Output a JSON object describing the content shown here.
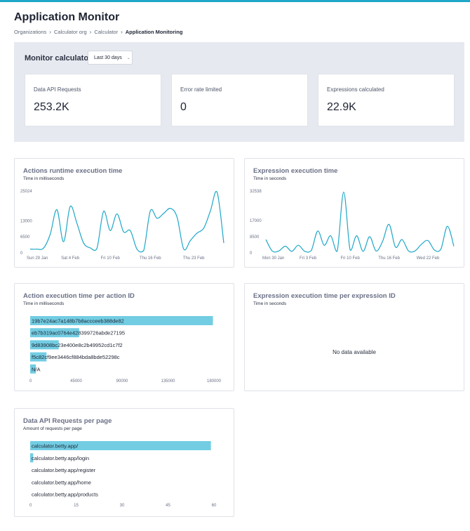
{
  "app": {
    "title": "Application Monitor",
    "breadcrumb": [
      "Organizations",
      "Calculator org",
      "Calculator",
      "Application Monitoring"
    ]
  },
  "monitor": {
    "title": "Monitor calculator",
    "range_label": "Last 30 days",
    "stats": [
      {
        "label": "Data API Requests",
        "value": "253.2K"
      },
      {
        "label": "Error rate limited",
        "value": "0"
      },
      {
        "label": "Expressions calculated",
        "value": "22.9K"
      }
    ]
  },
  "colors": {
    "accent": "#1ea7c9",
    "bar": "#72cde3",
    "panel": "#e6e9ef"
  },
  "cards": {
    "actions_runtime": {
      "title": "Actions runtime execution time",
      "subtitle": "Time in milliseconds"
    },
    "expression_exec": {
      "title": "Expression execution time",
      "subtitle": "Time in seconds"
    },
    "action_per_id": {
      "title": "Action execution time per action ID",
      "subtitle": "Time in milliseconds"
    },
    "expression_per_id": {
      "title": "Expression execution time per expression ID",
      "subtitle": "Time in seconds",
      "empty_text": "No data available"
    },
    "api_per_page": {
      "title": "Data API Requests per page",
      "subtitle": "Amount of requests per page"
    }
  },
  "chart_data": [
    {
      "type": "line",
      "yticks": [
        0,
        6500,
        13000,
        25024
      ],
      "ylim": [
        0,
        25024
      ],
      "xtick_labels": [
        "Sun 29 Jan",
        "Sat 4 Feb",
        "Fri 10 Feb",
        "Thu 16 Feb",
        "Thu 23 Feb"
      ],
      "xtick_positions": [
        0,
        6,
        12,
        18,
        24.5
      ],
      "x": [
        0,
        1,
        2,
        3,
        4,
        5,
        6,
        7,
        8,
        9,
        10,
        11,
        12,
        13,
        14,
        15,
        16,
        17,
        18,
        19,
        20,
        21,
        22,
        23,
        24,
        25,
        26,
        27,
        28,
        29
      ],
      "values": [
        1500,
        1500,
        1900,
        7500,
        17500,
        4500,
        18800,
        12000,
        4000,
        2000,
        1800,
        16800,
        9000,
        15800,
        8500,
        9000,
        1500,
        900,
        17000,
        14000,
        16000,
        18000,
        14500,
        1500,
        5000,
        8000,
        10000,
        17000,
        24500,
        4000
      ]
    },
    {
      "type": "line",
      "yticks": [
        0,
        8500,
        17000,
        32538
      ],
      "ylim": [
        0,
        32538
      ],
      "xtick_labels": [
        "Mon 30 Jan",
        "Fri 3 Feb",
        "Fri 10 Feb",
        "Thu 16 Feb",
        "Wed 22 Feb"
      ],
      "xtick_positions": [
        0,
        6.5,
        13,
        19,
        25
      ],
      "x": [
        0,
        1,
        2,
        3,
        4,
        5,
        6,
        7,
        8,
        9,
        10,
        11,
        12,
        13,
        14,
        15,
        16,
        17,
        18,
        19,
        20,
        21,
        22,
        23,
        24,
        25,
        26,
        27,
        28,
        29
      ],
      "values": [
        7000,
        900,
        1000,
        3500,
        800,
        4000,
        800,
        1200,
        11500,
        4000,
        9000,
        800,
        32000,
        1500,
        9000,
        800,
        8500,
        1000,
        6000,
        15000,
        3000,
        7000,
        1000,
        1000,
        4500,
        6500,
        1500,
        2000,
        14000,
        3500
      ]
    },
    {
      "type": "bar",
      "orientation": "horizontal",
      "categories": [
        "19b7e24ac7a148b7b8accceeb388de82",
        "eb7b319ac0764e428399726abde27195",
        "9d83908bc23e400e8c2b49952cd1c7f2",
        "f5c82cf9ee3446cf884bda8bde52298c",
        "N/A"
      ],
      "values": [
        179000,
        48000,
        28000,
        16000,
        5500
      ],
      "xticks": [
        0,
        45000,
        90000,
        135000,
        180000
      ],
      "xlim": [
        0,
        180000
      ]
    },
    {
      "type": "bar",
      "orientation": "horizontal",
      "categories": [],
      "values": []
    },
    {
      "type": "bar",
      "orientation": "horizontal",
      "categories": [
        "calculator.betty.app/",
        "calculator.betty.app/login",
        "calculator.betty.app/register",
        "calculator.betty.app/home",
        "calculator.betty.app/products"
      ],
      "values": [
        59,
        1,
        0,
        0,
        0
      ],
      "xticks": [
        0,
        15,
        30,
        45,
        60
      ],
      "xlim": [
        0,
        60
      ]
    }
  ]
}
